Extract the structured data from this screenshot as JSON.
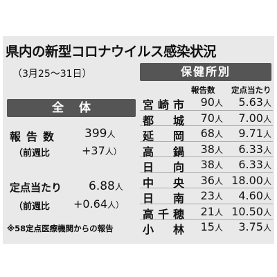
{
  "title": "県内の新型コロナウイルス感染状況",
  "period": "（3月25～31日）",
  "overall": {
    "heading": "全体",
    "reports_label": "報告数",
    "reports_value": "399",
    "reports_unit": "人",
    "reports_wow_label": "（前週比",
    "reports_wow_value": "+37",
    "reports_wow_unit": "人）",
    "fixed_label": "定点当たり",
    "fixed_value": "6.88",
    "fixed_unit": "人",
    "fixed_wow_label": "（前週比",
    "fixed_wow_value": "+0.64",
    "fixed_wow_unit": "人）"
  },
  "note": "※58定点医療機関からの報告",
  "offices": {
    "heading": "保健所別",
    "col_reports": "報告数",
    "col_per_site": "定点当たり",
    "unit": "人",
    "rows": [
      {
        "name": "宮崎市",
        "reports": "90",
        "per_site": "5.63"
      },
      {
        "name": "都城",
        "reports": "70",
        "per_site": "7.00"
      },
      {
        "name": "延岡",
        "reports": "68",
        "per_site": "9.71"
      },
      {
        "name": "高鍋",
        "reports": "38",
        "per_site": "6.33"
      },
      {
        "name": "日向",
        "reports": "38",
        "per_site": "6.33"
      },
      {
        "name": "中央",
        "reports": "36",
        "per_site": "18.00"
      },
      {
        "name": "日南",
        "reports": "23",
        "per_site": "4.60"
      },
      {
        "name": "高千穂",
        "reports": "21",
        "per_site": "10.50"
      },
      {
        "name": "小林",
        "reports": "15",
        "per_site": "3.75"
      }
    ]
  }
}
